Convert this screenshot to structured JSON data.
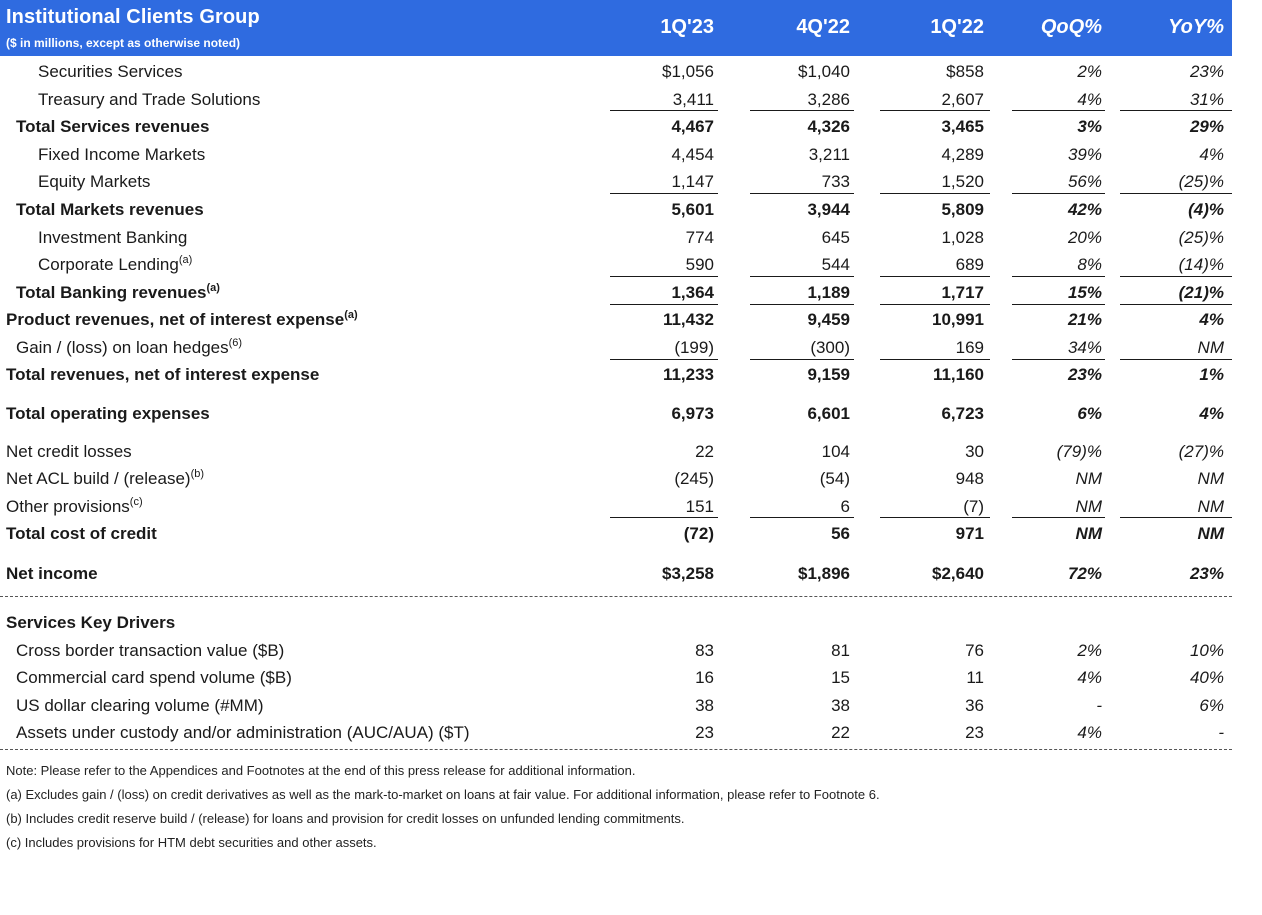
{
  "header": {
    "title": "Institutional Clients Group",
    "subtitle": "($ in millions, except as otherwise noted)",
    "columns": [
      "1Q'23",
      "4Q'22",
      "1Q'22",
      "QoQ%",
      "YoY%"
    ]
  },
  "rows": [
    {
      "label": "Securities Services",
      "sup": "",
      "values": [
        "$1,056",
        "$1,040",
        "$858",
        "2%",
        "23%"
      ]
    },
    {
      "label": "Treasury and Trade Solutions",
      "sup": "",
      "values": [
        "3,411",
        "3,286",
        "2,607",
        "4%",
        "31%"
      ]
    },
    {
      "label": "Total Services revenues",
      "sup": "",
      "values": [
        "4,467",
        "4,326",
        "3,465",
        "3%",
        "29%"
      ]
    },
    {
      "label": "Fixed Income Markets",
      "sup": "",
      "values": [
        "4,454",
        "3,211",
        "4,289",
        "39%",
        "4%"
      ]
    },
    {
      "label": "Equity Markets",
      "sup": "",
      "values": [
        "1,147",
        "733",
        "1,520",
        "56%",
        "(25)%"
      ]
    },
    {
      "label": "Total Markets revenues",
      "sup": "",
      "values": [
        "5,601",
        "3,944",
        "5,809",
        "42%",
        "(4)%"
      ]
    },
    {
      "label": "Investment Banking",
      "sup": "",
      "values": [
        "774",
        "645",
        "1,028",
        "20%",
        "(25)%"
      ]
    },
    {
      "label": "Corporate Lending",
      "sup": "(a)",
      "values": [
        "590",
        "544",
        "689",
        "8%",
        "(14)%"
      ]
    },
    {
      "label": "Total Banking revenues",
      "sup": "(a)",
      "values": [
        "1,364",
        "1,189",
        "1,717",
        "15%",
        "(21)%"
      ]
    },
    {
      "label": "Product revenues, net of interest expense",
      "sup": "(a)",
      "values": [
        "11,432",
        "9,459",
        "10,991",
        "21%",
        "4%"
      ]
    },
    {
      "label": "Gain / (loss) on loan hedges",
      "sup": "(6)",
      "values": [
        "(199)",
        "(300)",
        "169",
        "34%",
        "NM"
      ]
    },
    {
      "label": "Total revenues, net of interest expense",
      "sup": "",
      "values": [
        "11,233",
        "9,159",
        "11,160",
        "23%",
        "1%"
      ]
    },
    {
      "label": "Total operating expenses",
      "sup": "",
      "values": [
        "6,973",
        "6,601",
        "6,723",
        "6%",
        "4%"
      ]
    },
    {
      "label": "Net credit losses",
      "sup": "",
      "values": [
        "22",
        "104",
        "30",
        "(79)%",
        "(27)%"
      ]
    },
    {
      "label": "Net ACL build / (release)",
      "sup": "(b)",
      "values": [
        "(245)",
        "(54)",
        "948",
        "NM",
        "NM"
      ]
    },
    {
      "label": "Other provisions",
      "sup": "(c)",
      "values": [
        "151",
        "6",
        "(7)",
        "NM",
        "NM"
      ]
    },
    {
      "label": "Total cost of credit",
      "sup": "",
      "values": [
        "(72)",
        "56",
        "971",
        "NM",
        "NM"
      ]
    },
    {
      "label": "Net income",
      "sup": "",
      "values": [
        "$3,258",
        "$1,896",
        "$2,640",
        "72%",
        "23%"
      ]
    }
  ],
  "drivers": {
    "heading": "Services Key Drivers",
    "rows": [
      {
        "label": "Cross border transaction value ($B)",
        "values": [
          "83",
          "81",
          "76",
          "2%",
          "10%"
        ]
      },
      {
        "label": "Commercial card spend volume ($B)",
        "values": [
          "16",
          "15",
          "11",
          "4%",
          "40%"
        ]
      },
      {
        "label": "US dollar clearing volume (#MM)",
        "values": [
          "38",
          "38",
          "36",
          "-",
          "6%"
        ]
      },
      {
        "label": "Assets under custody and/or administration (AUC/AUA) ($T)",
        "values": [
          "23",
          "22",
          "23",
          "4%",
          "-"
        ]
      }
    ]
  },
  "notes": [
    "Note:  Please refer to the Appendices and Footnotes at the end of this press release for additional information.",
    "(a) Excludes gain / (loss) on credit derivatives as well as the mark-to-market on loans at fair value. For additional information, please refer to Footnote 6.",
    "(b) Includes credit reserve build / (release) for loans and provision for credit losses on unfunded lending commitments.",
    "(c) Includes provisions for HTM debt securities and other assets."
  ]
}
